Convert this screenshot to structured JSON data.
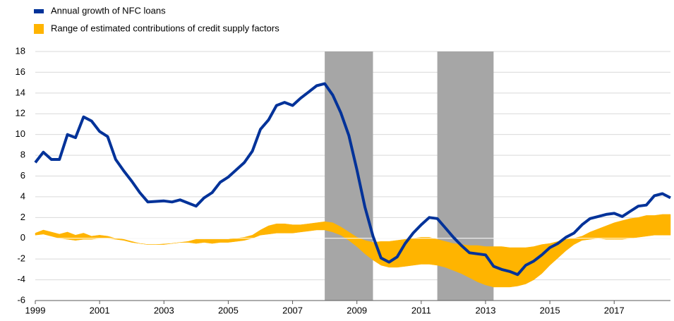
{
  "chart_data": {
    "type": "line",
    "x": [
      1999.0,
      1999.25,
      1999.5,
      1999.75,
      2000.0,
      2000.25,
      2000.5,
      2000.75,
      2001.0,
      2001.25,
      2001.5,
      2001.75,
      2002.0,
      2002.25,
      2002.5,
      2002.75,
      2003.0,
      2003.25,
      2003.5,
      2003.75,
      2004.0,
      2004.25,
      2004.5,
      2004.75,
      2005.0,
      2005.25,
      2005.5,
      2005.75,
      2006.0,
      2006.25,
      2006.5,
      2006.75,
      2007.0,
      2007.25,
      2007.5,
      2007.75,
      2008.0,
      2008.25,
      2008.5,
      2008.75,
      2009.0,
      2009.25,
      2009.5,
      2009.75,
      2010.0,
      2010.25,
      2010.5,
      2010.75,
      2011.0,
      2011.25,
      2011.5,
      2011.75,
      2012.0,
      2012.25,
      2012.5,
      2012.75,
      2013.0,
      2013.25,
      2013.5,
      2013.75,
      2014.0,
      2014.25,
      2014.5,
      2014.75,
      2015.0,
      2015.25,
      2015.5,
      2015.75,
      2016.0,
      2016.25,
      2016.5,
      2016.75,
      2017.0,
      2017.25,
      2017.5,
      2017.75,
      2018.0,
      2018.25,
      2018.5,
      2018.75
    ],
    "series": [
      {
        "name": "Annual growth of NFC loans",
        "color": "#003299",
        "values": [
          7.3,
          8.3,
          7.6,
          7.6,
          10.0,
          9.7,
          11.7,
          11.3,
          10.3,
          9.8,
          7.6,
          6.5,
          5.5,
          4.4,
          3.5,
          3.55,
          3.6,
          3.5,
          3.7,
          3.4,
          3.1,
          3.9,
          4.4,
          5.4,
          5.9,
          6.6,
          7.3,
          8.4,
          10.5,
          11.4,
          12.8,
          13.1,
          12.8,
          13.5,
          14.1,
          14.7,
          14.9,
          13.8,
          12.1,
          9.9,
          6.6,
          3.0,
          0.2,
          -1.9,
          -2.3,
          -1.8,
          -0.5,
          0.5,
          1.3,
          2.0,
          1.9,
          1.0,
          0.1,
          -0.7,
          -1.4,
          -1.5,
          -1.6,
          -2.7,
          -3.0,
          -3.2,
          -3.5,
          -2.6,
          -2.2,
          -1.6,
          -0.9,
          -0.5,
          0.1,
          0.5,
          1.3,
          1.9,
          2.1,
          2.3,
          2.4,
          2.1,
          2.6,
          3.1,
          3.2,
          4.1,
          4.3,
          3.9
        ]
      },
      {
        "name": "Range of estimated contributions of credit supply factors",
        "color": "#ffb400",
        "band": true,
        "lower": [
          0.3,
          0.4,
          0.2,
          0.0,
          -0.1,
          -0.2,
          -0.1,
          -0.1,
          0.0,
          0.0,
          -0.1,
          -0.2,
          -0.4,
          -0.5,
          -0.6,
          -0.6,
          -0.6,
          -0.5,
          -0.4,
          -0.4,
          -0.5,
          -0.4,
          -0.5,
          -0.4,
          -0.4,
          -0.3,
          -0.2,
          0.0,
          0.3,
          0.4,
          0.5,
          0.5,
          0.5,
          0.6,
          0.7,
          0.8,
          0.8,
          0.6,
          0.3,
          -0.2,
          -0.8,
          -1.5,
          -2.1,
          -2.6,
          -2.8,
          -2.8,
          -2.7,
          -2.6,
          -2.5,
          -2.5,
          -2.6,
          -2.8,
          -3.1,
          -3.4,
          -3.8,
          -4.2,
          -4.5,
          -4.7,
          -4.7,
          -4.7,
          -4.6,
          -4.4,
          -4.0,
          -3.4,
          -2.6,
          -1.9,
          -1.2,
          -0.6,
          -0.2,
          -0.1,
          0.0,
          -0.1,
          -0.1,
          -0.1,
          0.0,
          0.1,
          0.2,
          0.3,
          0.3,
          0.3
        ],
        "upper": [
          0.5,
          0.8,
          0.6,
          0.4,
          0.6,
          0.3,
          0.5,
          0.2,
          0.3,
          0.2,
          0.0,
          -0.1,
          -0.3,
          -0.5,
          -0.6,
          -0.6,
          -0.55,
          -0.5,
          -0.4,
          -0.3,
          -0.1,
          -0.1,
          -0.1,
          -0.1,
          -0.1,
          0.0,
          0.1,
          0.3,
          0.8,
          1.2,
          1.4,
          1.4,
          1.3,
          1.3,
          1.4,
          1.5,
          1.6,
          1.5,
          1.1,
          0.6,
          0.1,
          -0.2,
          -0.4,
          -0.3,
          -0.3,
          -0.2,
          -0.1,
          0.0,
          0.1,
          0.1,
          -0.1,
          -0.3,
          -0.5,
          -0.6,
          -0.7,
          -0.7,
          -0.8,
          -0.8,
          -0.8,
          -0.9,
          -0.9,
          -0.9,
          -0.8,
          -0.6,
          -0.5,
          -0.3,
          -0.1,
          0.0,
          0.2,
          0.6,
          0.9,
          1.2,
          1.5,
          1.7,
          1.9,
          2.0,
          2.2,
          2.2,
          2.3,
          2.3
        ]
      }
    ],
    "shaded_periods": [
      {
        "start": 2008.0,
        "end": 2009.5
      },
      {
        "start": 2011.5,
        "end": 2013.25
      }
    ],
    "shade_color": "#a6a6a6",
    "xlim": [
      1999,
      2018.75
    ],
    "xticks": [
      1999,
      2001,
      2003,
      2005,
      2007,
      2009,
      2011,
      2013,
      2015,
      2017
    ],
    "ylim": [
      -6,
      18
    ],
    "yticks": [
      -6,
      -4,
      -2,
      0,
      2,
      4,
      6,
      8,
      10,
      12,
      14,
      16,
      18
    ],
    "grid": true,
    "legend": "top-left"
  }
}
